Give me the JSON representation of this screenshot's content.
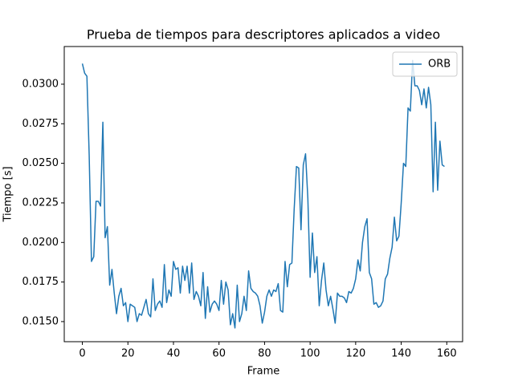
{
  "chart_data": {
    "type": "line",
    "title": "Prueba de tiempos para descriptores aplicados a video",
    "xlabel": "Frame",
    "ylabel": "Tiempo [s]",
    "x": [
      0,
      1,
      2,
      3,
      4,
      5,
      6,
      7,
      8,
      9,
      10,
      11,
      12,
      13,
      14,
      15,
      16,
      17,
      18,
      19,
      20,
      21,
      22,
      23,
      24,
      25,
      26,
      27,
      28,
      29,
      30,
      31,
      32,
      33,
      34,
      35,
      36,
      37,
      38,
      39,
      40,
      41,
      42,
      43,
      44,
      45,
      46,
      47,
      48,
      49,
      50,
      51,
      52,
      53,
      54,
      55,
      56,
      57,
      58,
      59,
      60,
      61,
      62,
      63,
      64,
      65,
      66,
      67,
      68,
      69,
      70,
      71,
      72,
      73,
      74,
      75,
      76,
      77,
      78,
      79,
      80,
      81,
      82,
      83,
      84,
      85,
      86,
      87,
      88,
      89,
      90,
      91,
      92,
      93,
      94,
      95,
      96,
      97,
      98,
      99,
      100,
      101,
      102,
      103,
      104,
      105,
      106,
      107,
      108,
      109,
      110,
      111,
      112,
      113,
      114,
      115,
      116,
      117,
      118,
      119,
      120,
      121,
      122,
      123,
      124,
      125,
      126,
      127,
      128,
      129,
      130,
      131,
      132,
      133,
      134,
      135,
      136,
      137,
      138,
      139,
      140,
      141,
      142,
      143,
      144,
      145,
      146,
      147,
      148,
      149,
      150,
      151,
      152,
      153,
      154,
      155,
      156,
      157,
      158,
      159
    ],
    "series": [
      {
        "name": "ORB",
        "color": "#1f77b4",
        "values": [
          0.0313,
          0.0307,
          0.0305,
          0.0255,
          0.0188,
          0.0191,
          0.0226,
          0.0226,
          0.0223,
          0.0276,
          0.0203,
          0.021,
          0.0173,
          0.0183,
          0.0168,
          0.0155,
          0.0166,
          0.0171,
          0.016,
          0.0162,
          0.015,
          0.0161,
          0.016,
          0.0159,
          0.015,
          0.0155,
          0.0154,
          0.0159,
          0.0164,
          0.0155,
          0.0153,
          0.0177,
          0.0157,
          0.0161,
          0.0163,
          0.0159,
          0.0186,
          0.0162,
          0.017,
          0.0166,
          0.0188,
          0.0183,
          0.0184,
          0.0168,
          0.0185,
          0.0176,
          0.0185,
          0.0168,
          0.0187,
          0.0164,
          0.0169,
          0.0166,
          0.016,
          0.0181,
          0.0152,
          0.0172,
          0.0156,
          0.0161,
          0.0163,
          0.0161,
          0.0157,
          0.0176,
          0.0161,
          0.0175,
          0.017,
          0.0148,
          0.0155,
          0.0146,
          0.0173,
          0.015,
          0.0155,
          0.0166,
          0.0157,
          0.0182,
          0.0171,
          0.0169,
          0.0168,
          0.0166,
          0.016,
          0.0149,
          0.0156,
          0.0166,
          0.017,
          0.0166,
          0.017,
          0.0169,
          0.0174,
          0.0157,
          0.0156,
          0.0188,
          0.0172,
          0.0186,
          0.0187,
          0.0221,
          0.0248,
          0.0247,
          0.0208,
          0.0249,
          0.0256,
          0.0228,
          0.0178,
          0.0206,
          0.0181,
          0.0191,
          0.016,
          0.0176,
          0.0187,
          0.017,
          0.016,
          0.0166,
          0.0158,
          0.0149,
          0.0168,
          0.0166,
          0.0166,
          0.0165,
          0.0162,
          0.0169,
          0.0168,
          0.0171,
          0.0177,
          0.0189,
          0.0182,
          0.02,
          0.021,
          0.0215,
          0.0181,
          0.0177,
          0.0161,
          0.0162,
          0.0159,
          0.016,
          0.0163,
          0.0177,
          0.018,
          0.019,
          0.0197,
          0.0216,
          0.0201,
          0.0204,
          0.0225,
          0.025,
          0.0248,
          0.0285,
          0.0283,
          0.0315,
          0.0299,
          0.0299,
          0.0296,
          0.0287,
          0.0297,
          0.0285,
          0.0298,
          0.0287,
          0.0232,
          0.0276,
          0.0233,
          0.0264,
          0.0249,
          0.0248
        ]
      }
    ],
    "xlim": [
      -7.95,
      166.95
    ],
    "xticks": [
      0,
      20,
      40,
      60,
      80,
      100,
      120,
      140,
      160
    ],
    "ylim": [
      0.01373,
      0.03238
    ],
    "yticks": [
      {
        "value": 0.015,
        "label": "0.0150"
      },
      {
        "value": 0.0175,
        "label": "0.0175"
      },
      {
        "value": 0.02,
        "label": "0.0200"
      },
      {
        "value": 0.0225,
        "label": "0.0225"
      },
      {
        "value": 0.025,
        "label": "0.0250"
      },
      {
        "value": 0.0275,
        "label": "0.0275"
      },
      {
        "value": 0.03,
        "label": "0.0300"
      }
    ],
    "legend": "upper right"
  }
}
